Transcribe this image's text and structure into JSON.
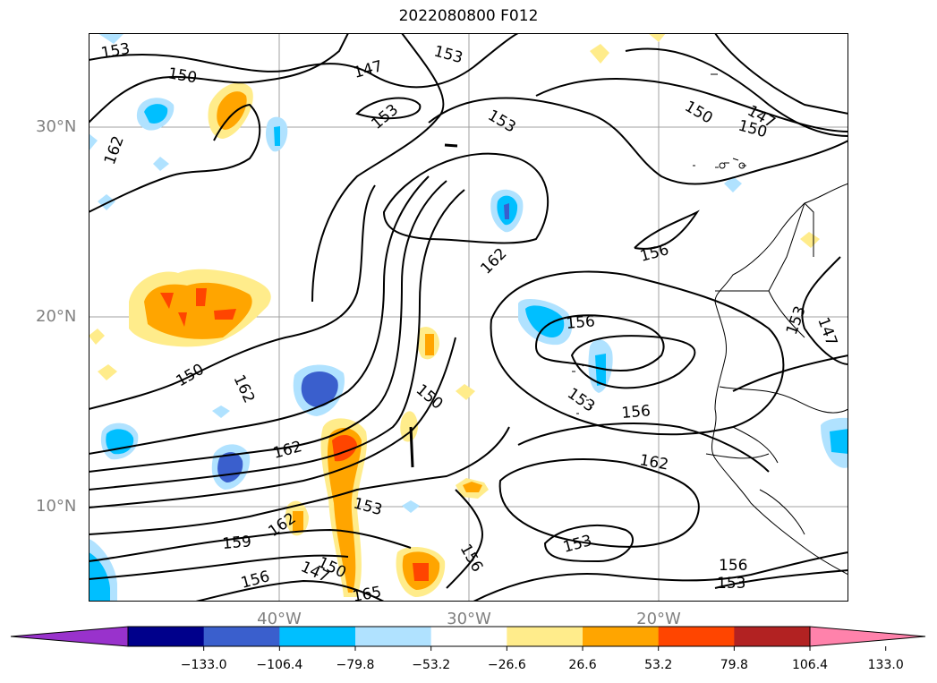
{
  "title": "2022080800 F012",
  "map": {
    "lat_labels": [
      "30°N",
      "20°N",
      "10°N"
    ],
    "lon_labels": [
      "40°W",
      "30°W",
      "20°W"
    ],
    "grid": true,
    "contour_color": "#000000",
    "contour_labels": [
      "153",
      "150",
      "147",
      "153",
      "153",
      "153",
      "147",
      "150",
      "150",
      "162",
      "162",
      "156",
      "156",
      "153",
      "147",
      "150",
      "162",
      "150",
      "153",
      "156",
      "162",
      "162",
      "159",
      "162",
      "153",
      "150",
      "147",
      "156",
      "165",
      "156",
      "153"
    ]
  },
  "colorbar": {
    "ticks": [
      "−133.0",
      "−106.4",
      "−79.8",
      "−53.2",
      "−26.6",
      "26.6",
      "53.2",
      "79.8",
      "106.4",
      "133.0"
    ],
    "colors": [
      "#9932cc",
      "#00008b",
      "#3a5fcd",
      "#00bfff",
      "#b0e2ff",
      "#ffffff",
      "#ffec8b",
      "#ffa500",
      "#ff4500",
      "#b22222",
      "#ff82ab"
    ]
  }
}
